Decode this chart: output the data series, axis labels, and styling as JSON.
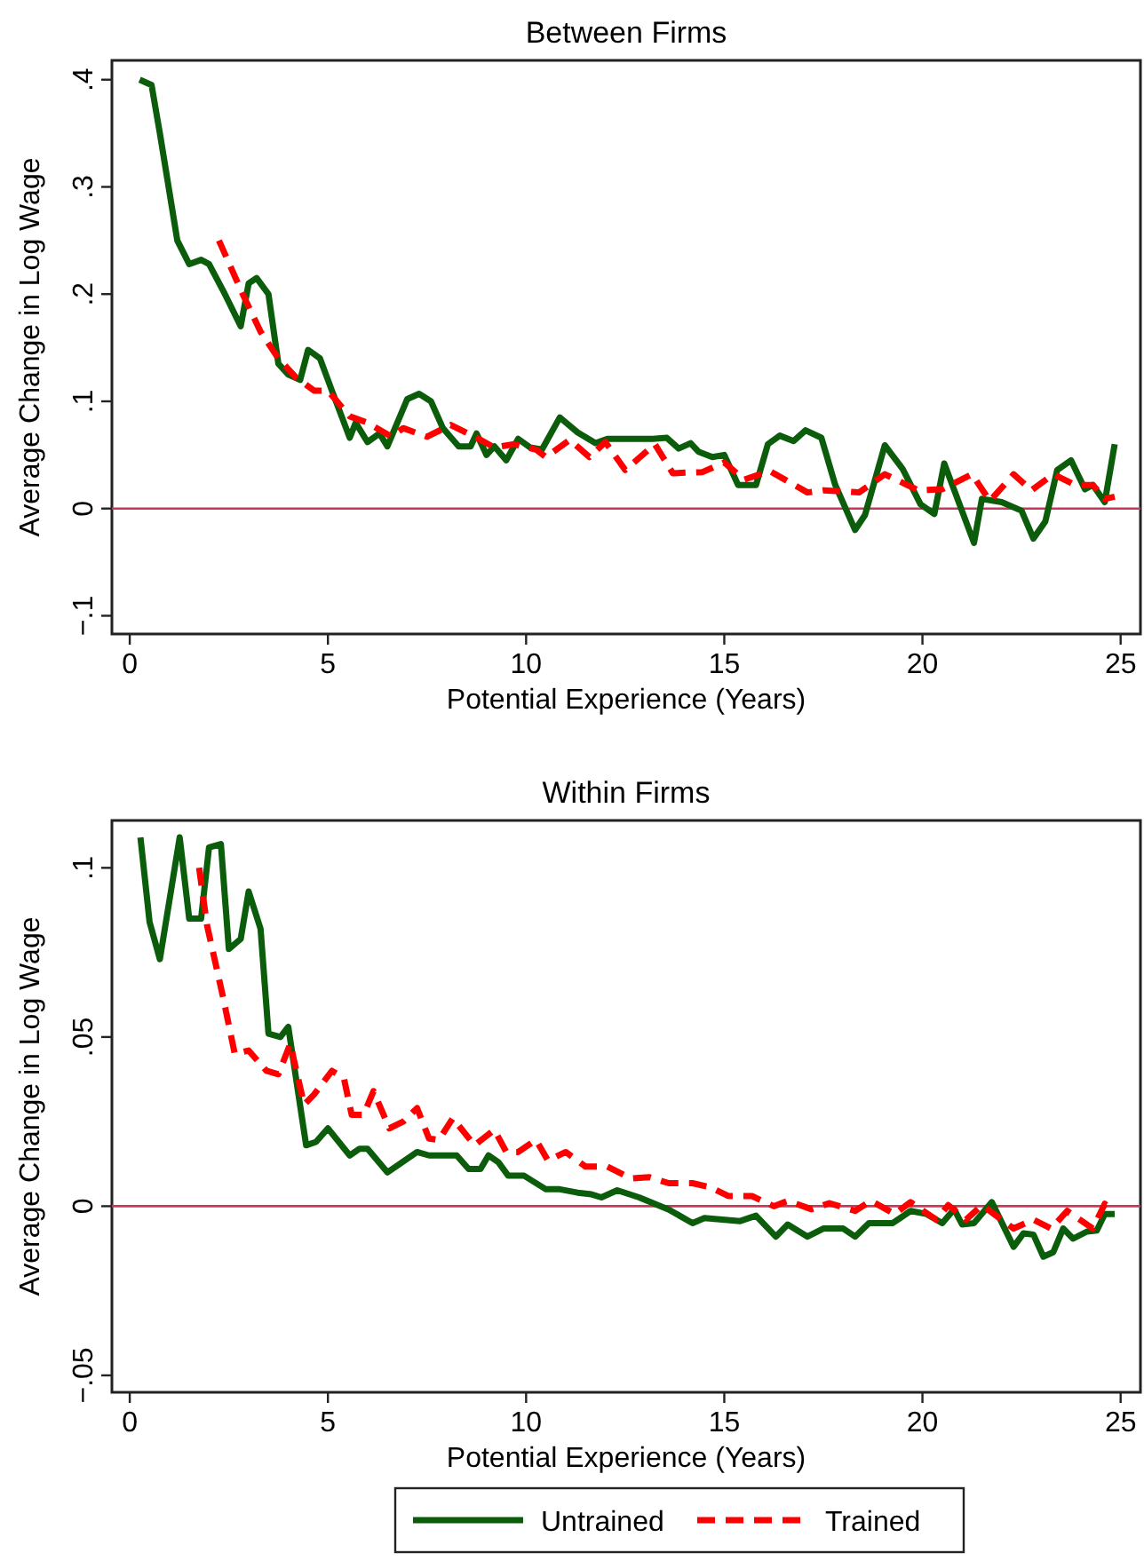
{
  "chart_data": [
    {
      "type": "line",
      "title": "Between Firms",
      "xlabel": "Potential Experience (Years)",
      "ylabel": "Average Change in Log Wage",
      "xlim": [
        -0.45,
        25.5
      ],
      "ylim": [
        -0.117,
        0.418
      ],
      "xticks": [
        0,
        5,
        10,
        15,
        20,
        25
      ],
      "yticks": [
        {
          "value": -0.1,
          "label": "−.1"
        },
        {
          "value": 0,
          "label": "0"
        },
        {
          "value": 0.1,
          "label": ".1"
        },
        {
          "value": 0.2,
          "label": ".2"
        },
        {
          "value": 0.3,
          "label": ".3"
        },
        {
          "value": 0.4,
          "label": ".4"
        }
      ],
      "grid": false,
      "legend": false,
      "ref_lines": [
        {
          "axis": "y",
          "value": 0,
          "color": "#c8385a"
        }
      ],
      "series": [
        {
          "color": "#0b5d0b",
          "line_style": "solid",
          "x": [
            0.25,
            0.55,
            0.76,
            1.2,
            1.5,
            1.8,
            2.0,
            2.4,
            2.8,
            3.0,
            3.2,
            3.5,
            3.75,
            4.0,
            4.3,
            4.5,
            4.8,
            5.1,
            5.55,
            5.7,
            6.0,
            6.3,
            6.5,
            7.0,
            7.3,
            7.6,
            7.9,
            8.3,
            8.6,
            8.75,
            9.0,
            9.2,
            9.5,
            9.8,
            10.1,
            10.4,
            10.85,
            11.3,
            11.75,
            12.05,
            13.2,
            13.55,
            13.85,
            14.15,
            14.35,
            14.7,
            15.0,
            15.35,
            15.8,
            16.1,
            16.4,
            16.75,
            17.05,
            17.45,
            17.8,
            18.3,
            18.55,
            19.05,
            19.5,
            19.95,
            20.3,
            20.55,
            21.3,
            21.5,
            22.0,
            22.5,
            22.8,
            23.1,
            23.4,
            23.75,
            24.1,
            24.3,
            24.6,
            24.85
          ],
          "values": [
            0.4,
            0.395,
            0.35,
            0.25,
            0.228,
            0.232,
            0.228,
            0.2,
            0.17,
            0.21,
            0.215,
            0.2,
            0.135,
            0.125,
            0.12,
            0.148,
            0.14,
            0.11,
            0.066,
            0.08,
            0.062,
            0.07,
            0.058,
            0.102,
            0.107,
            0.1,
            0.075,
            0.058,
            0.058,
            0.07,
            0.05,
            0.058,
            0.045,
            0.065,
            0.057,
            0.055,
            0.085,
            0.071,
            0.061,
            0.065,
            0.065,
            0.066,
            0.056,
            0.061,
            0.053,
            0.048,
            0.05,
            0.022,
            0.022,
            0.06,
            0.068,
            0.063,
            0.073,
            0.066,
            0.022,
            -0.02,
            -0.006,
            0.059,
            0.037,
            0.004,
            -0.005,
            0.042,
            -0.032,
            0.009,
            0.006,
            -0.002,
            -0.028,
            -0.012,
            0.036,
            0.045,
            0.018,
            0.022,
            0.006,
            0.06
          ]
        },
        {
          "color": "#ff0000",
          "line_style": "dashed",
          "x": [
            2.25,
            2.85,
            3.3,
            3.75,
            4.2,
            4.65,
            5.0,
            5.55,
            6.0,
            6.6,
            6.9,
            7.5,
            8.1,
            8.7,
            9.2,
            9.7,
            10.25,
            10.5,
            11.1,
            11.6,
            12.0,
            12.5,
            13.25,
            13.7,
            14.45,
            15.0,
            15.5,
            16.15,
            17.1,
            17.5,
            18.4,
            19.05,
            19.9,
            20.5,
            21.25,
            21.7,
            22.3,
            22.75,
            23.3,
            23.85,
            24.3,
            24.6,
            24.85
          ],
          "values": [
            0.25,
            0.2,
            0.165,
            0.14,
            0.122,
            0.11,
            0.11,
            0.086,
            0.08,
            0.067,
            0.075,
            0.067,
            0.078,
            0.067,
            0.057,
            0.06,
            0.055,
            0.048,
            0.064,
            0.048,
            0.062,
            0.036,
            0.06,
            0.033,
            0.034,
            0.043,
            0.027,
            0.035,
            0.015,
            0.017,
            0.015,
            0.032,
            0.017,
            0.018,
            0.032,
            0.007,
            0.032,
            0.017,
            0.032,
            0.022,
            0.022,
            0.009,
            0.011
          ]
        }
      ]
    },
    {
      "type": "line",
      "title": "Within Firms",
      "xlabel": "Potential Experience (Years)",
      "ylabel": "Average Change in Log Wage",
      "xlim": [
        -0.45,
        25.5
      ],
      "ylim": [
        -0.055,
        0.114
      ],
      "xticks": [
        0,
        5,
        10,
        15,
        20,
        25
      ],
      "yticks": [
        {
          "value": -0.05,
          "label": "−.05"
        },
        {
          "value": 0,
          "label": "0"
        },
        {
          "value": 0.05,
          "label": ".05"
        },
        {
          "value": 0.1,
          "label": ".1"
        }
      ],
      "grid": false,
      "legend": "bottom",
      "ref_lines": [
        {
          "axis": "y",
          "value": 0,
          "color": "#c8385a"
        }
      ],
      "series": [
        {
          "name": "Untrained",
          "color": "#0b5d0b",
          "line_style": "solid",
          "x": [
            0.27,
            0.5,
            0.76,
            1.26,
            1.5,
            1.8,
            2.0,
            2.3,
            2.5,
            2.8,
            3.0,
            3.3,
            3.5,
            3.8,
            4.0,
            4.45,
            4.7,
            5.0,
            5.55,
            5.8,
            6.0,
            6.5,
            7.25,
            7.55,
            8.25,
            8.55,
            8.85,
            9.05,
            9.3,
            9.55,
            9.95,
            10.5,
            10.85,
            11.3,
            11.65,
            11.9,
            12.3,
            12.85,
            13.6,
            14.2,
            14.5,
            15.4,
            15.8,
            16.3,
            16.6,
            17.1,
            17.5,
            18.0,
            18.3,
            18.65,
            19.25,
            19.7,
            20.1,
            20.5,
            20.8,
            21.0,
            21.3,
            21.75,
            22.3,
            22.55,
            22.8,
            23.05,
            23.3,
            23.55,
            23.8,
            24.15,
            24.4,
            24.6,
            24.85
          ],
          "values": [
            0.109,
            0.084,
            0.073,
            0.109,
            0.085,
            0.085,
            0.106,
            0.107,
            0.076,
            0.079,
            0.093,
            0.082,
            0.051,
            0.05,
            0.053,
            0.018,
            0.019,
            0.023,
            0.015,
            0.017,
            0.017,
            0.01,
            0.016,
            0.015,
            0.015,
            0.011,
            0.011,
            0.015,
            0.013,
            0.009,
            0.009,
            0.005,
            0.005,
            0.004,
            0.0035,
            0.0026,
            0.0047,
            0.0026,
            -0.001,
            -0.005,
            -0.0035,
            -0.0044,
            -0.0028,
            -0.009,
            -0.0054,
            -0.009,
            -0.0066,
            -0.0066,
            -0.009,
            -0.005,
            -0.005,
            -0.0014,
            -0.0023,
            -0.005,
            -0.0009,
            -0.0054,
            -0.005,
            0.0012,
            -0.012,
            -0.008,
            -0.0084,
            -0.0149,
            -0.0136,
            -0.0066,
            -0.0096,
            -0.0075,
            -0.0072,
            -0.0023,
            -0.0023
          ]
        },
        {
          "name": "Trained",
          "color": "#ff0000",
          "line_style": "dashed",
          "x": [
            1.75,
            1.95,
            2.35,
            2.65,
            3.0,
            3.45,
            3.75,
            4.05,
            4.4,
            4.65,
            5.1,
            5.4,
            5.6,
            5.9,
            6.15,
            6.55,
            6.9,
            7.25,
            7.55,
            7.8,
            8.15,
            8.7,
            9.2,
            9.5,
            9.8,
            10.25,
            10.55,
            11.0,
            11.5,
            12.05,
            12.65,
            13.1,
            13.6,
            14.2,
            14.65,
            15.1,
            15.7,
            16.25,
            16.6,
            17.2,
            17.65,
            18.3,
            18.7,
            19.3,
            19.7,
            20.35,
            20.65,
            21.1,
            21.5,
            21.8,
            22.3,
            22.8,
            23.25,
            23.65,
            24.3,
            24.6,
            24.85
          ],
          "values": [
            0.1,
            0.083,
            0.062,
            0.045,
            0.046,
            0.04,
            0.039,
            0.048,
            0.03,
            0.033,
            0.04,
            0.038,
            0.027,
            0.027,
            0.034,
            0.023,
            0.025,
            0.029,
            0.02,
            0.0196,
            0.026,
            0.018,
            0.0226,
            0.016,
            0.016,
            0.0196,
            0.0135,
            0.016,
            0.0117,
            0.0117,
            0.0082,
            0.0086,
            0.0068,
            0.0068,
            0.0056,
            0.003,
            0.003,
            0,
            0.0016,
            -0.0009,
            0.0009,
            -0.0014,
            0.0016,
            -0.0023,
            0.0012,
            -0.004,
            0.0003,
            -0.004,
            0.0003,
            -0.0023,
            -0.0066,
            -0.004,
            -0.0066,
            -0.0014,
            -0.0066,
            0.0007,
            -0.0014
          ]
        }
      ]
    }
  ]
}
